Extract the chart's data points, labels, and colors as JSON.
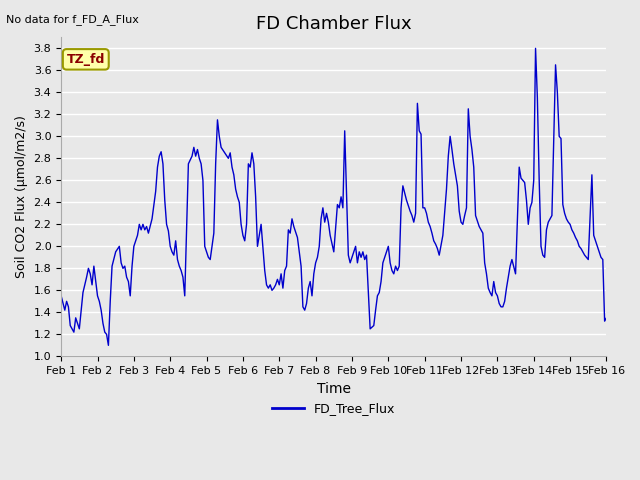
{
  "title": "FD Chamber Flux",
  "xlabel": "Time",
  "ylabel": "Soil CO2 Flux (μmol/m2/s)",
  "top_left_text": "No data for f_FD_A_Flux",
  "label_box_text": "TZ_fd",
  "legend_label": "FD_Tree_Flux",
  "line_color": "#0000CC",
  "ylim": [
    1.0,
    3.9
  ],
  "yticks": [
    1.0,
    1.2,
    1.4,
    1.6,
    1.8,
    2.0,
    2.2,
    2.4,
    2.6,
    2.8,
    3.0,
    3.2,
    3.4,
    3.6,
    3.8
  ],
  "xtick_labels": [
    "Feb 1",
    "Feb 2",
    "Feb 3",
    "Feb 4",
    "Feb 5",
    "Feb 6",
    "Feb 7",
    "Feb 8",
    "Feb 9",
    "Feb 10",
    "Feb 11",
    "Feb 12",
    "Feb 13",
    "Feb 14",
    "Feb 15",
    "Feb 16"
  ],
  "bg_color": "#E8E8E8",
  "plot_bg_color": "#E8E8E8",
  "grid_color": "#FFFFFF",
  "x_values": [
    0,
    0.1,
    0.15,
    0.2,
    0.25,
    0.35,
    0.4,
    0.5,
    0.6,
    0.65,
    0.7,
    0.75,
    0.8,
    0.85,
    0.9,
    1.0,
    1.05,
    1.1,
    1.15,
    1.2,
    1.25,
    1.3,
    1.35,
    1.4,
    1.5,
    1.6,
    1.65,
    1.7,
    1.75,
    1.8,
    1.85,
    1.9,
    1.95,
    2.0,
    2.1,
    2.15,
    2.2,
    2.25,
    2.3,
    2.35,
    2.4,
    2.5,
    2.6,
    2.65,
    2.7,
    2.75,
    2.8,
    2.85,
    2.9,
    2.95,
    3.0,
    3.05,
    3.1,
    3.15,
    3.2,
    3.25,
    3.3,
    3.35,
    3.4,
    3.5,
    3.6,
    3.65,
    3.7,
    3.75,
    3.8,
    3.85,
    3.9,
    3.95,
    4.0,
    4.05,
    4.1,
    4.15,
    4.2,
    4.25,
    4.3,
    4.35,
    4.4,
    4.5,
    4.6,
    4.65,
    4.7,
    4.75,
    4.8,
    4.85,
    4.9,
    4.95,
    5.0,
    5.05,
    5.1,
    5.15,
    5.2,
    5.25,
    5.3,
    5.35,
    5.4,
    5.5,
    5.6,
    5.65,
    5.7,
    5.75,
    5.8,
    5.85,
    5.9,
    5.95,
    6.0,
    6.05,
    6.1,
    6.15,
    6.2,
    6.25,
    6.3,
    6.35,
    6.4,
    6.5,
    6.6,
    6.65,
    6.7,
    6.75,
    6.8,
    6.85,
    6.9,
    6.95,
    7.0,
    7.05,
    7.1,
    7.15,
    7.2,
    7.25,
    7.3,
    7.35,
    7.4,
    7.5,
    7.6,
    7.65,
    7.7,
    7.75,
    7.8,
    7.85,
    7.9,
    7.95,
    8.0,
    8.05,
    8.1,
    8.15,
    8.2,
    8.25,
    8.3,
    8.35,
    8.4,
    8.5,
    8.6,
    8.65,
    8.7,
    8.75,
    8.8,
    8.85,
    8.9,
    8.95,
    9.0,
    9.05,
    9.1,
    9.15,
    9.2,
    9.25,
    9.3,
    9.35,
    9.4,
    9.5,
    9.6,
    9.65,
    9.7,
    9.75,
    9.8,
    9.85,
    9.9,
    9.95,
    10.0,
    10.05,
    10.1,
    10.15,
    10.2,
    10.25,
    10.3,
    10.35,
    10.4,
    10.5,
    10.6,
    10.65,
    10.7,
    10.75,
    10.8,
    10.85,
    10.9,
    10.95,
    11.0,
    11.05,
    11.1,
    11.15,
    11.2,
    11.25,
    11.3,
    11.35,
    11.4,
    11.5,
    11.6,
    11.65,
    11.7,
    11.75,
    11.8,
    11.85,
    11.9,
    11.95,
    12.0,
    12.05,
    12.1,
    12.15,
    12.2,
    12.25,
    12.3,
    12.35,
    12.4,
    12.5,
    12.6,
    12.65,
    12.7,
    12.75,
    12.8,
    12.85,
    12.9,
    12.95,
    13.0,
    13.05,
    13.1,
    13.15,
    13.2,
    13.25,
    13.3,
    13.35,
    13.4,
    13.5,
    13.6,
    13.65,
    13.7,
    13.75,
    13.8,
    13.85,
    13.9,
    13.95,
    14.0,
    14.05,
    14.1,
    14.15,
    14.2,
    14.25,
    14.3,
    14.35,
    14.4,
    14.5,
    14.6,
    14.65,
    14.7,
    14.75,
    14.8,
    14.85,
    14.9,
    14.95,
    15.0
  ],
  "y_values": [
    1.55,
    1.42,
    1.5,
    1.45,
    1.28,
    1.22,
    1.35,
    1.25,
    1.58,
    1.65,
    1.72,
    1.8,
    1.75,
    1.65,
    1.82,
    1.55,
    1.5,
    1.42,
    1.3,
    1.22,
    1.2,
    1.1,
    1.5,
    1.82,
    1.95,
    2.0,
    1.85,
    1.8,
    1.82,
    1.72,
    1.68,
    1.55,
    1.82,
    2.0,
    2.1,
    2.2,
    2.15,
    2.2,
    2.15,
    2.18,
    2.12,
    2.25,
    2.5,
    2.72,
    2.82,
    2.86,
    2.75,
    2.42,
    2.2,
    2.14,
    2.0,
    1.95,
    1.92,
    2.05,
    1.88,
    1.82,
    1.78,
    1.72,
    1.55,
    2.75,
    2.82,
    2.9,
    2.82,
    2.88,
    2.8,
    2.75,
    2.6,
    2.0,
    1.95,
    1.9,
    1.88,
    2.0,
    2.12,
    2.75,
    3.15,
    3.0,
    2.9,
    2.85,
    2.8,
    2.85,
    2.72,
    2.65,
    2.52,
    2.45,
    2.4,
    2.2,
    2.1,
    2.05,
    2.2,
    2.75,
    2.72,
    2.85,
    2.75,
    2.45,
    2.0,
    2.2,
    1.78,
    1.65,
    1.62,
    1.65,
    1.6,
    1.62,
    1.65,
    1.7,
    1.65,
    1.75,
    1.62,
    1.78,
    1.82,
    2.15,
    2.12,
    2.25,
    2.18,
    2.08,
    1.82,
    1.45,
    1.42,
    1.48,
    1.62,
    1.68,
    1.55,
    1.75,
    1.85,
    1.9,
    2.0,
    2.25,
    2.35,
    2.22,
    2.3,
    2.22,
    2.1,
    1.95,
    2.38,
    2.35,
    2.45,
    2.35,
    3.05,
    2.48,
    1.92,
    1.85,
    1.9,
    1.95,
    2.0,
    1.85,
    1.95,
    1.9,
    1.95,
    1.88,
    1.92,
    1.25,
    1.28,
    1.42,
    1.55,
    1.58,
    1.68,
    1.85,
    1.9,
    1.95,
    2.0,
    1.85,
    1.78,
    1.75,
    1.82,
    1.78,
    1.82,
    2.35,
    2.55,
    2.42,
    2.32,
    2.28,
    2.22,
    2.3,
    3.3,
    3.05,
    3.02,
    2.35,
    2.35,
    2.3,
    2.22,
    2.18,
    2.12,
    2.05,
    2.02,
    1.98,
    1.92,
    2.1,
    2.52,
    2.82,
    3.0,
    2.88,
    2.75,
    2.65,
    2.55,
    2.32,
    2.22,
    2.2,
    2.28,
    2.35,
    3.25,
    3.0,
    2.88,
    2.72,
    2.28,
    2.18,
    2.12,
    1.85,
    1.75,
    1.62,
    1.58,
    1.55,
    1.68,
    1.58,
    1.55,
    1.48,
    1.45,
    1.45,
    1.5,
    1.62,
    1.72,
    1.82,
    1.88,
    1.75,
    2.72,
    2.62,
    2.6,
    2.58,
    2.42,
    2.2,
    2.35,
    2.4,
    2.6,
    3.8,
    3.35,
    2.6,
    2.0,
    1.92,
    1.9,
    2.15,
    2.22,
    2.28,
    3.65,
    3.4,
    3.0,
    2.98,
    2.38,
    2.3,
    2.25,
    2.22,
    2.2,
    2.15,
    2.12,
    2.08,
    2.05,
    2.0,
    1.98,
    1.95,
    1.92,
    1.88,
    2.65,
    2.1,
    2.05,
    2.0,
    1.95,
    1.9,
    1.88,
    1.32,
    1.35
  ]
}
